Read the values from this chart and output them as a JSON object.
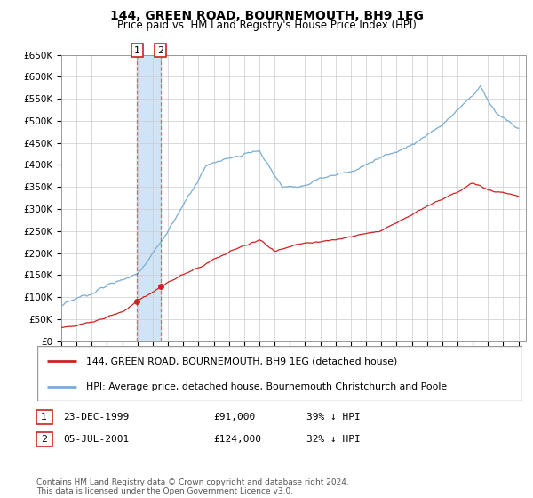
{
  "title": "144, GREEN ROAD, BOURNEMOUTH, BH9 1EG",
  "subtitle": "Price paid vs. HM Land Registry's House Price Index (HPI)",
  "ylim": [
    0,
    650000
  ],
  "yticks": [
    0,
    50000,
    100000,
    150000,
    200000,
    250000,
    300000,
    350000,
    400000,
    450000,
    500000,
    550000,
    600000,
    650000
  ],
  "ytick_labels": [
    "£0",
    "£50K",
    "£100K",
    "£150K",
    "£200K",
    "£250K",
    "£300K",
    "£350K",
    "£400K",
    "£450K",
    "£500K",
    "£550K",
    "£600K",
    "£650K"
  ],
  "hpi_color": "#7aadd4",
  "price_color": "#cc2222",
  "marker_color": "#cc2222",
  "shade_color": "#d0e4f7",
  "transaction1": {
    "date_num": 1999.97,
    "price": 91000,
    "label": "1"
  },
  "transaction2": {
    "date_num": 2001.51,
    "price": 124000,
    "label": "2"
  },
  "legend_entries": [
    "144, GREEN ROAD, BOURNEMOUTH, BH9 1EG (detached house)",
    "HPI: Average price, detached house, Bournemouth Christchurch and Poole"
  ],
  "table_rows": [
    [
      "1",
      "23-DEC-1999",
      "£91,000",
      "39% ↓ HPI"
    ],
    [
      "2",
      "05-JUL-2001",
      "£124,000",
      "32% ↓ HPI"
    ]
  ],
  "footer": "Contains HM Land Registry data © Crown copyright and database right 2024.\nThis data is licensed under the Open Government Licence v3.0.",
  "background_color": "#ffffff",
  "grid_color": "#cccccc",
  "vline_color": "#cc2222",
  "vline_alpha": 0.6,
  "xlim_start": 1995.0,
  "xlim_end": 2025.5
}
